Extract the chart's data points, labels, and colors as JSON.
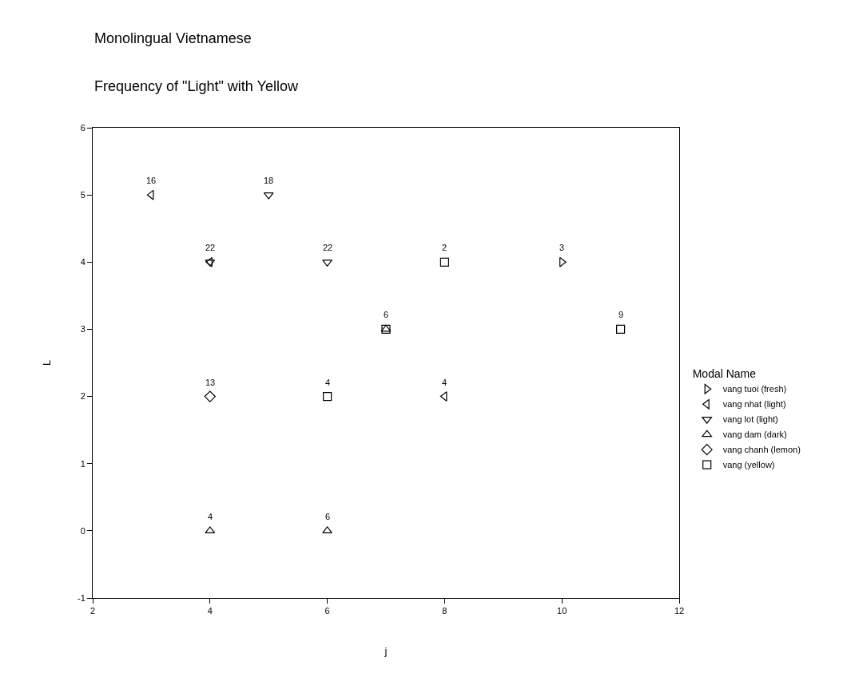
{
  "chart_data": {
    "type": "scatter",
    "title": "Monolingual Vietnamese",
    "subtitle": "Frequency of \"Light\" with Yellow",
    "xlabel": "j",
    "ylabel": "L",
    "legend_title": "Modal Name",
    "legend": "right",
    "grid": false,
    "xlim": [
      2,
      12
    ],
    "xticks": [
      2,
      4,
      6,
      8,
      10,
      12
    ],
    "ylim": [
      -1,
      6
    ],
    "yticks": [
      -1,
      0,
      1,
      2,
      3,
      4,
      5,
      6
    ],
    "series": [
      {
        "name": "vang tuoi (fresh)",
        "color": "#000000",
        "marker": "triangle-right",
        "x": [
          10
        ],
        "values": [
          4
        ]
      },
      {
        "name": "vang nhat (light)",
        "color": "#000000",
        "marker": "triangle-left",
        "x": [
          3,
          4,
          8
        ],
        "values": [
          5,
          4,
          2
        ]
      },
      {
        "name": "vang lot (light)",
        "color": "#000000",
        "marker": "triangle-down",
        "x": [
          5,
          6,
          4
        ],
        "values": [
          5,
          4,
          4
        ]
      },
      {
        "name": "vang dam (dark)",
        "color": "#000000",
        "marker": "triangle-up",
        "x": [
          4,
          6,
          7
        ],
        "values": [
          0,
          0,
          3
        ]
      },
      {
        "name": "vang chanh (lemon)",
        "color": "#000000",
        "marker": "diamond",
        "x": [
          4
        ],
        "values": [
          2
        ]
      },
      {
        "name": "vang (yellow)",
        "color": "#000000",
        "marker": "square",
        "x": [
          8,
          7,
          11,
          6
        ],
        "values": [
          4,
          3,
          3,
          2
        ]
      }
    ],
    "annotations": [
      {
        "text": "16",
        "x": 3,
        "y": 5
      },
      {
        "text": "18",
        "x": 5,
        "y": 5
      },
      {
        "text": "22",
        "x": 4,
        "y": 4
      },
      {
        "text": "22",
        "x": 6,
        "y": 4
      },
      {
        "text": "2",
        "x": 8,
        "y": 4
      },
      {
        "text": "3",
        "x": 10,
        "y": 4
      },
      {
        "text": "6",
        "x": 7,
        "y": 3
      },
      {
        "text": "9",
        "x": 11,
        "y": 3
      },
      {
        "text": "13",
        "x": 4,
        "y": 2
      },
      {
        "text": "4",
        "x": 6,
        "y": 2
      },
      {
        "text": "4",
        "x": 8,
        "y": 2
      },
      {
        "text": "4",
        "x": 4,
        "y": 0
      },
      {
        "text": "6",
        "x": 6,
        "y": 0
      }
    ]
  }
}
